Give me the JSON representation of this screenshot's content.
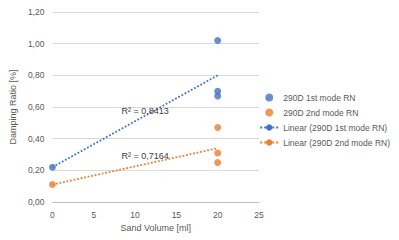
{
  "chart_data": {
    "type": "scatter",
    "x_label": "Sand Volume [ml]",
    "y_label": "Damping Ratio [%]",
    "series": [
      {
        "name": "290D 1st mode RN",
        "type": "scatter",
        "marker": "circle",
        "color": "#4472c4",
        "x": [
          0,
          20,
          20,
          20
        ],
        "values": [
          0.22,
          1.02,
          0.7,
          0.67
        ]
      },
      {
        "name": "290D 2nd mode RN",
        "type": "scatter",
        "marker": "circle",
        "color": "#ed7d31",
        "x": [
          0,
          20,
          20,
          20
        ],
        "values": [
          0.11,
          0.47,
          0.31,
          0.25
        ]
      },
      {
        "name": "Linear (290D 1st mode RN)",
        "type": "line",
        "line_style": "dotted",
        "color": "#4472c4",
        "x": [
          0,
          20
        ],
        "values": [
          0.22,
          0.8
        ]
      },
      {
        "name": "Linear (290D 2nd mode RN)",
        "type": "line",
        "line_style": "dotted",
        "color": "#ed7d31",
        "x": [
          0,
          20
        ],
        "values": [
          0.11,
          0.34
        ]
      }
    ],
    "annotations": [
      {
        "text": "R² = 0,8413",
        "series": "Linear (290D 1st mode RN)"
      },
      {
        "text": "R² = 0,7164",
        "series": "Linear (290D 2nd mode RN)"
      }
    ],
    "xlim": [
      0,
      25
    ],
    "xticks": [
      0,
      5,
      10,
      15,
      20,
      25
    ],
    "ylim": [
      0,
      1.2
    ],
    "yticks": [
      {
        "value": 0,
        "label": "0,00"
      },
      {
        "value": 0.2,
        "label": "0,20"
      },
      {
        "value": 0.4,
        "label": "0,40"
      },
      {
        "value": 0.6,
        "label": "0,60"
      },
      {
        "value": 0.8,
        "label": "0,80"
      },
      {
        "value": 1.0,
        "label": "1,00"
      },
      {
        "value": 1.2,
        "label": "1,20"
      }
    ],
    "grid": true,
    "legend": "right"
  }
}
